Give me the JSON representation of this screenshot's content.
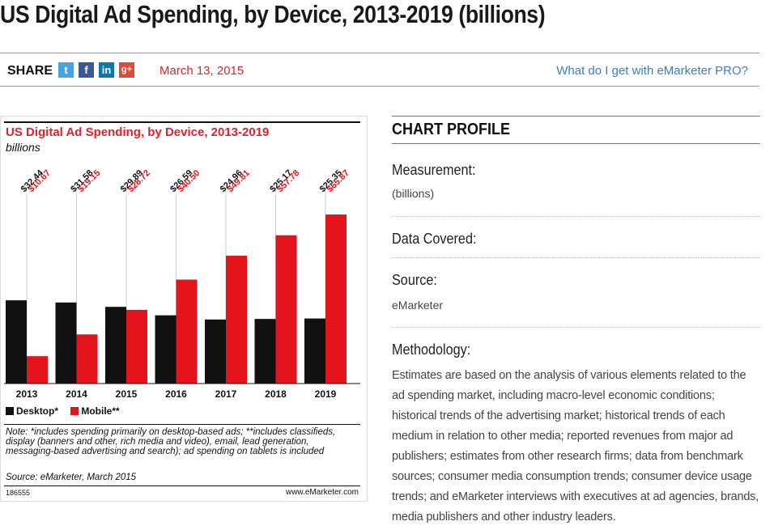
{
  "page": {
    "title": "US Digital Ad Spending, by Device, 2013-2019 (billions)"
  },
  "share_bar": {
    "label": "SHARE",
    "social_icons": [
      "twitter-icon",
      "facebook-icon",
      "linkedin-icon",
      "google-plus-icon"
    ],
    "date": "March 13, 2015",
    "pro_link": "What do I get with eMarketer PRO?"
  },
  "chart_image": {
    "footer_id": "186555",
    "brand": "www.eMarketer.com",
    "note": "Note: *includes spending primarily on desktop-based ads; **includes classifieds, display (banners and other, rich media and video), email, lead generation, messaging-based advertising and search); ad spending on tablets is included",
    "source": "Source: eMarketer, March 2015"
  },
  "chart_data": {
    "type": "bar",
    "title": "US Digital Ad Spending, by Device, 2013-2019",
    "subtitle": "billions",
    "categories": [
      "2013",
      "2014",
      "2015",
      "2016",
      "2017",
      "2018",
      "2019"
    ],
    "series": [
      {
        "name": "Desktop*",
        "color": "#111111",
        "values": [
          32.44,
          31.58,
          29.89,
          26.59,
          24.96,
          25.17,
          25.35
        ],
        "labels": [
          "$32.44",
          "$31.58",
          "$29.89",
          "$26.59",
          "$24.96",
          "$25.17",
          "$25.35"
        ]
      },
      {
        "name": "Mobile**",
        "color": "#e5131b",
        "values": [
          10.67,
          19.15,
          28.72,
          40.5,
          49.81,
          57.78,
          65.87
        ],
        "labels": [
          "$10.67",
          "$19.15",
          "$28.72",
          "$40.50",
          "$49.81",
          "$57.78",
          "$65.87"
        ]
      }
    ],
    "ylim": [
      0,
      70
    ],
    "grid": false,
    "legend": "bottom-left"
  },
  "profile": {
    "heading": "CHART PROFILE",
    "measurement_label": "Measurement:",
    "measurement_value": "(billions)",
    "data_covered_label": "Data Covered:",
    "source_label": "Source:",
    "source_value": "eMarketer",
    "methodology_label": "Methodology:",
    "methodology_text": "Estimates are based on the analysis of various elements related to the ad spending market, including macro-level economic conditions; historical trends of the advertising market; historical trends of each medium in relation to other media; reported revenues from major ad publishers; estimates from other research firms; data from benchmark sources; consumer media consumption trends; consumer device usage trends; and eMarketer interviews with executives at ad agencies, brands, media publishers and other industry leaders."
  }
}
